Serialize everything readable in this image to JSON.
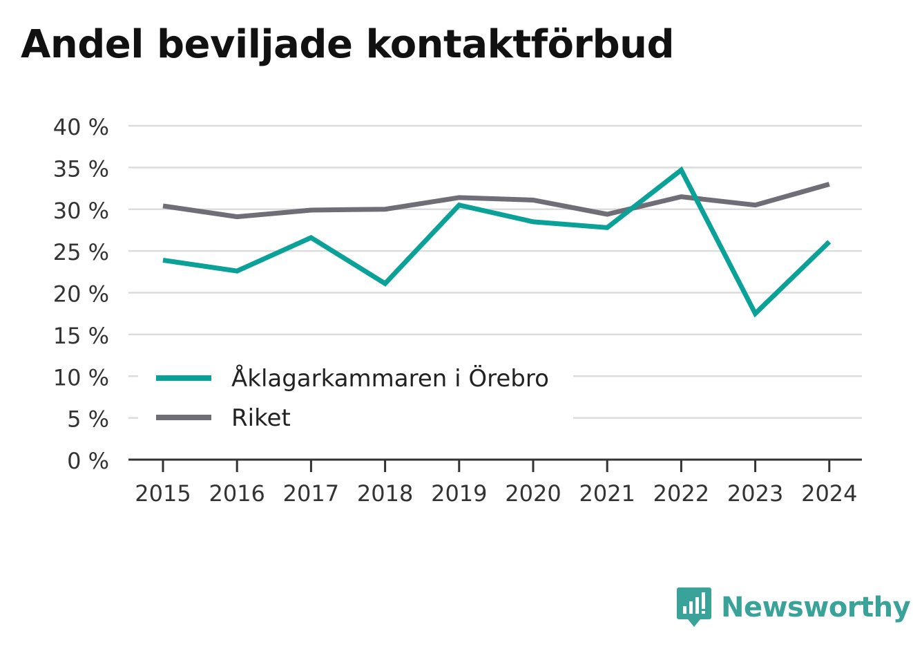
{
  "title": "Andel beviljade kontaktförbud",
  "brand": {
    "name": "Newsworthy",
    "icon": "newsworthy-logo-icon",
    "color": "#3aa399"
  },
  "chart_data": {
    "type": "line",
    "title": "Andel beviljade kontaktförbud",
    "xlabel": "",
    "ylabel": "",
    "x": [
      "2015",
      "2016",
      "2017",
      "2018",
      "2019",
      "2020",
      "2021",
      "2022",
      "2023",
      "2024"
    ],
    "ylim": [
      0,
      40
    ],
    "yticks": [
      0,
      5,
      10,
      15,
      20,
      25,
      30,
      35,
      40
    ],
    "ytick_labels": [
      "0 %",
      "5 %",
      "10 %",
      "15 %",
      "20 %",
      "25 %",
      "30 %",
      "35 %",
      "40 %"
    ],
    "grid": true,
    "legend_position": "bottom-left",
    "series": [
      {
        "name": "Åklagarkammaren i Örebro",
        "color": "#0aa198",
        "values": [
          23.9,
          22.6,
          26.6,
          21.1,
          30.5,
          28.5,
          27.8,
          34.7,
          17.5,
          26.1
        ]
      },
      {
        "name": "Riket",
        "color": "#6f6e76",
        "values": [
          30.4,
          29.1,
          29.9,
          30.0,
          31.4,
          31.1,
          29.4,
          31.5,
          30.5,
          33.0
        ]
      }
    ]
  }
}
